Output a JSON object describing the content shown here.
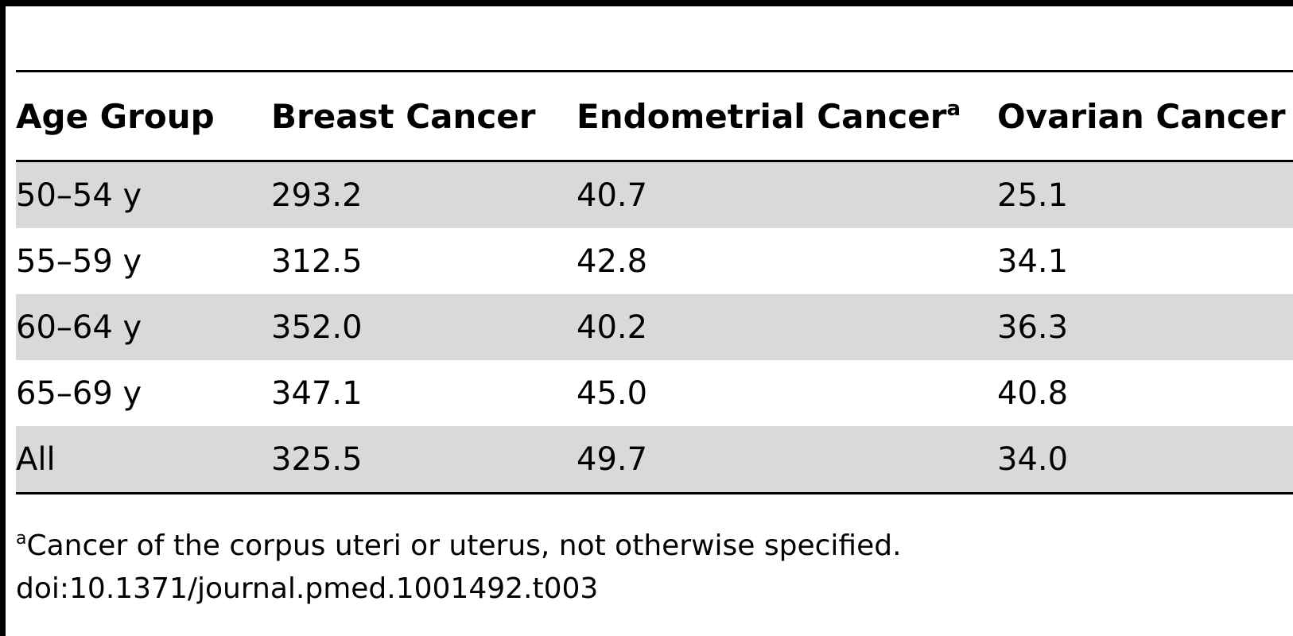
{
  "table": {
    "columns": [
      {
        "label": "Age Group",
        "marker": ""
      },
      {
        "label": "Breast Cancer",
        "marker": ""
      },
      {
        "label": "Endometrial Cancer",
        "marker": "a"
      },
      {
        "label": "Ovarian Cancer",
        "marker": ""
      }
    ],
    "rows": [
      {
        "cells": [
          "50–54 y",
          "293.2",
          "40.7",
          "25.1"
        ],
        "shaded": true
      },
      {
        "cells": [
          "55–59 y",
          "312.5",
          "42.8",
          "34.1"
        ],
        "shaded": false
      },
      {
        "cells": [
          "60–64 y",
          "352.0",
          "40.2",
          "36.3"
        ],
        "shaded": true
      },
      {
        "cells": [
          "65–69 y",
          "347.1",
          "45.0",
          "40.8"
        ],
        "shaded": false
      },
      {
        "cells": [
          "All",
          "325.5",
          "49.7",
          "34.0"
        ],
        "shaded": true
      }
    ]
  },
  "footnotes": {
    "marker": "a",
    "note": "Cancer of the corpus uteri or uterus, not otherwise specified.",
    "doi": "doi:10.1371/journal.pmed.1001492.t003"
  },
  "colors": {
    "row_shade": "#d9d9d9",
    "rule": "#000000"
  }
}
